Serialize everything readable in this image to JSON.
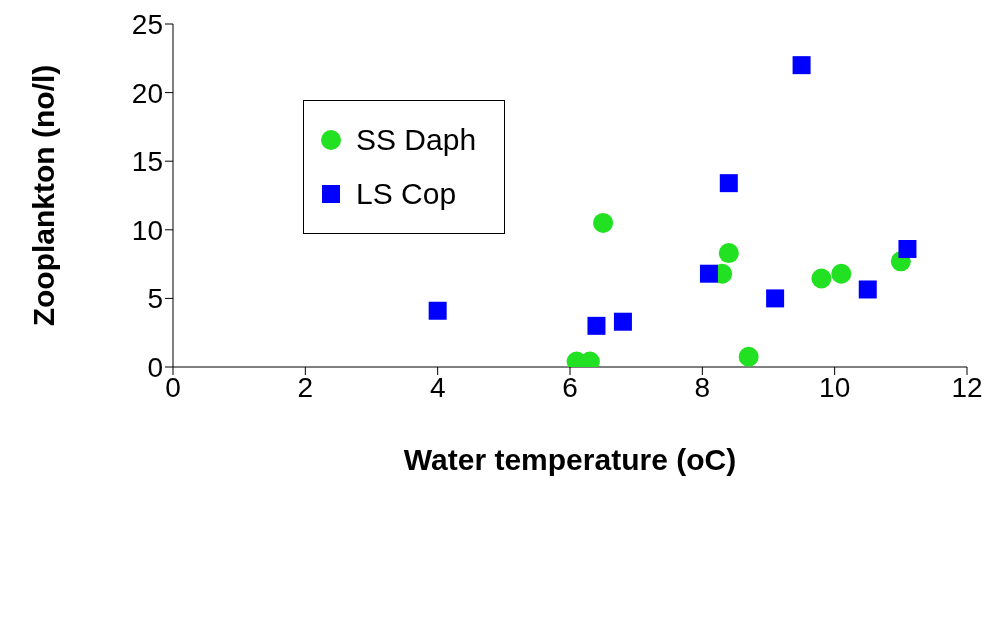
{
  "chart_data": {
    "type": "scatter",
    "xlabel": "Water temperature (oC)",
    "ylabel": "Zooplankton (no/l)",
    "xlim": [
      0,
      12
    ],
    "xticks": [
      0,
      2,
      4,
      6,
      8,
      10,
      12
    ],
    "ylim": [
      0,
      25
    ],
    "yticks": [
      0,
      5,
      10,
      15,
      20,
      25
    ],
    "grid": false,
    "legend": "top left",
    "series": [
      {
        "name": "SS Daph",
        "color": "#22e022",
        "marker": "circle",
        "x": [
          6.1,
          6.3,
          6.5,
          8.3,
          8.4,
          8.7,
          9.8,
          10.1,
          11.0
        ],
        "values": [
          0.4,
          0.4,
          10.5,
          6.8,
          8.3,
          0.75,
          6.45,
          6.8,
          7.7
        ]
      },
      {
        "name": "LS Cop",
        "color": "#0000ff",
        "marker": "square",
        "x": [
          4.0,
          6.4,
          6.8,
          8.1,
          8.4,
          9.1,
          9.5,
          10.5,
          11.1
        ],
        "values": [
          4.1,
          3.0,
          3.3,
          6.8,
          13.4,
          5.0,
          22.0,
          5.65,
          8.6
        ]
      }
    ]
  }
}
